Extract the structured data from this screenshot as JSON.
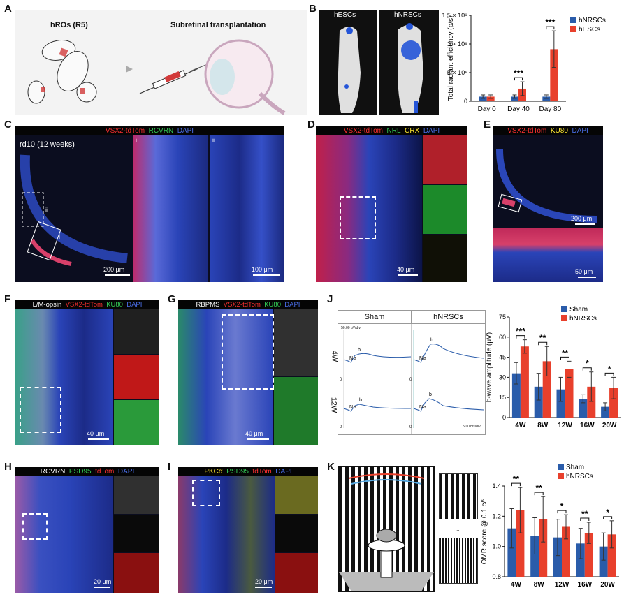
{
  "panels": {
    "A": {
      "label": "A",
      "title1": "hROs (R5)",
      "title2": "Subretinal transplantation"
    },
    "B": {
      "label": "B",
      "img_labels": [
        "hESCs",
        "hNRSCs"
      ],
      "chart": {
        "type": "bar",
        "ylabel": "Total radiant efficiency (p/s)",
        "yticks": [
          "0",
          "5 × 10⁸",
          "1 × 10⁹",
          "1.5 × 10⁹"
        ],
        "categories": [
          "Day 0",
          "Day 40",
          "Day 80"
        ],
        "series": [
          {
            "name": "hNRSCs",
            "color": "#2a5caa",
            "values": [
              0.08,
              0.08,
              0.08
            ],
            "err": [
              0.03,
              0.03,
              0.03
            ]
          },
          {
            "name": "hESCs",
            "color": "#e8402c",
            "values": [
              0.08,
              0.22,
              0.91
            ],
            "err": [
              0.03,
              0.12,
              0.32
            ]
          }
        ],
        "sig": [
          "",
          "***",
          "***"
        ]
      }
    },
    "C": {
      "label": "C",
      "stains": [
        "VSX2-tdTom",
        "RCVRN",
        "DAPI"
      ],
      "caption": "rd10 (12 weeks)",
      "insets": [
        "i",
        "ii"
      ],
      "box_labels": [
        "i",
        "ii"
      ],
      "scale1": "200 μm",
      "scale2": "100 μm"
    },
    "D": {
      "label": "D",
      "stains": [
        "VSX2-tdTom",
        "NRL",
        "CRX",
        "DAPI"
      ],
      "scale": "40 μm"
    },
    "E": {
      "label": "E",
      "stains": [
        "VSX2-tdTom",
        "KU80",
        "DAPI"
      ],
      "scale1": "200 μm",
      "scale2": "50 μm"
    },
    "F": {
      "label": "F",
      "stains": [
        "L/M-opsin",
        "VSX2-tdTom",
        "KU80",
        "DAPI"
      ],
      "scale": "40 μm"
    },
    "G": {
      "label": "G",
      "stains": [
        "RBPMS",
        "VSX2-tdTom",
        "KU80",
        "DAPI"
      ],
      "scale": "40 μm"
    },
    "H": {
      "label": "H",
      "stains": [
        "RCVRN",
        "PSD95",
        "tdTom",
        "DAPI"
      ],
      "scale": "20 μm"
    },
    "I": {
      "label": "I",
      "stains": [
        "PKCα",
        "PSD95",
        "tdTom",
        "DAPI"
      ],
      "scale": "20 μm"
    },
    "J": {
      "label": "J",
      "erg_headers": [
        "Sham",
        "hNRSCs"
      ],
      "erg_rows": [
        "4W",
        "12W"
      ],
      "erg_scale_v": "50.00 μV/div",
      "erg_scale_t": "50.0 ms/div",
      "wave_labels": {
        "a": "a",
        "b": "b",
        "n": "N",
        "zero": "0"
      },
      "chart": {
        "type": "bar",
        "ylabel": "b-wave amplitude (μV)",
        "ylim": [
          0,
          75
        ],
        "yticks": [
          "0",
          "15",
          "30",
          "45",
          "60",
          "75"
        ],
        "categories": [
          "4W",
          "8W",
          "12W",
          "16W",
          "20W"
        ],
        "series": [
          {
            "name": "Sham",
            "color": "#2a5caa",
            "values": [
              33,
              23,
              21,
              14,
              8
            ],
            "err": [
              8,
              10,
              9,
              3,
              3
            ]
          },
          {
            "name": "hNRSCs",
            "color": "#e8402c",
            "values": [
              53,
              42,
              36,
              23,
              22
            ],
            "err": [
              5,
              11,
              6,
              11,
              8
            ]
          }
        ],
        "sig": [
          "***",
          "**",
          "**",
          "*",
          "*"
        ]
      }
    },
    "K": {
      "label": "K",
      "chart": {
        "type": "bar",
        "ylabel": "OMR score @ 0.1 c/°",
        "ylim": [
          0.8,
          1.4
        ],
        "yticks": [
          "0.8",
          "1.0",
          "1.2",
          "1.4"
        ],
        "categories": [
          "4W",
          "8W",
          "12W",
          "16W",
          "20W"
        ],
        "series": [
          {
            "name": "Sham",
            "color": "#2a5caa",
            "values": [
              1.12,
              1.07,
              1.06,
              1.02,
              1.0
            ],
            "err": [
              0.13,
              0.12,
              0.12,
              0.1,
              0.09
            ]
          },
          {
            "name": "hNRSCs",
            "color": "#e8402c",
            "values": [
              1.24,
              1.18,
              1.13,
              1.09,
              1.08
            ],
            "err": [
              0.15,
              0.15,
              0.08,
              0.07,
              0.09
            ]
          }
        ],
        "sig": [
          "**",
          "**",
          "*",
          "**",
          "*"
        ]
      }
    }
  },
  "colors": {
    "red": "#ff3030",
    "green": "#33cc55",
    "yellow": "#ffe830",
    "blue": "#4a6ee8",
    "white": "#ffffff"
  }
}
